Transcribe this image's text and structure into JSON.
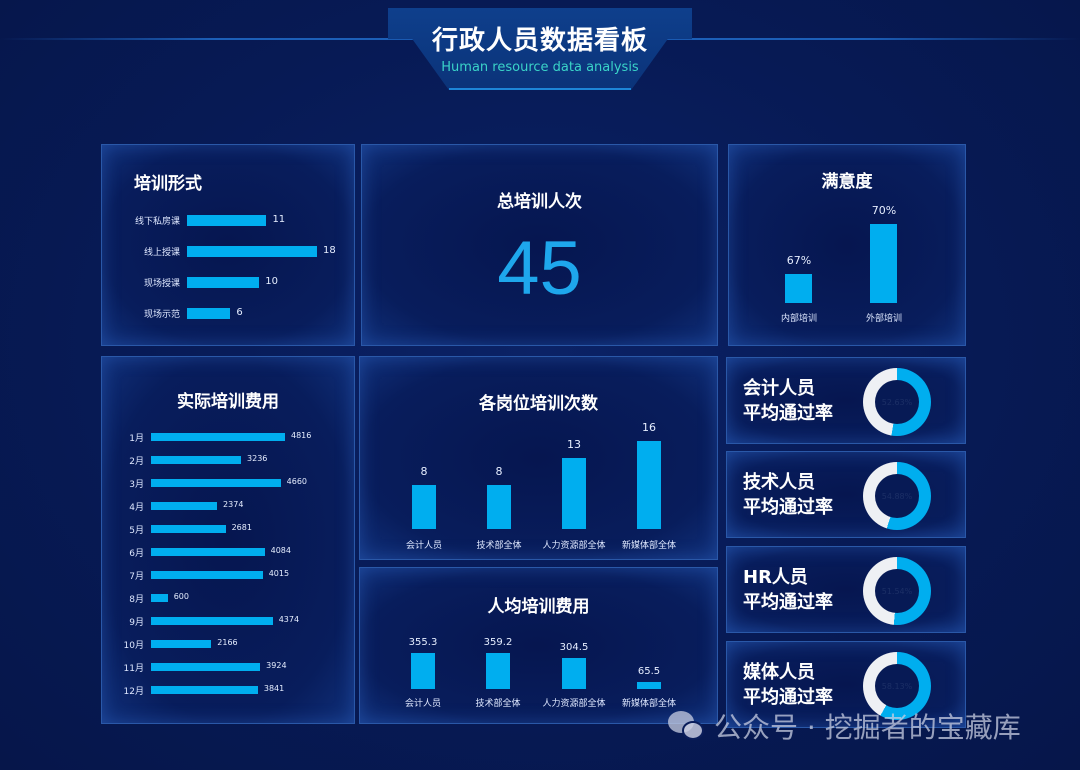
{
  "header": {
    "title": "行政人员数据看板",
    "subtitle": "Human resource data analysis"
  },
  "training_form": {
    "title": "培训形式",
    "items": [
      {
        "label": "线下私房课",
        "value": "11"
      },
      {
        "label": "线上授课",
        "value": "18"
      },
      {
        "label": "现场授课",
        "value": "10"
      },
      {
        "label": "现场示范",
        "value": "6"
      }
    ]
  },
  "total_training": {
    "title": "总培训人次",
    "value": "45"
  },
  "satisfaction": {
    "title": "满意度",
    "items": [
      {
        "label": "内部培训",
        "value": "67%"
      },
      {
        "label": "外部培训",
        "value": "70%"
      }
    ]
  },
  "actual_cost": {
    "title": "实际培训费用",
    "items": [
      {
        "label": "1月",
        "value": "4816"
      },
      {
        "label": "2月",
        "value": "3236"
      },
      {
        "label": "3月",
        "value": "4660"
      },
      {
        "label": "4月",
        "value": "2374"
      },
      {
        "label": "5月",
        "value": "2681"
      },
      {
        "label": "6月",
        "value": "4084"
      },
      {
        "label": "7月",
        "value": "4015"
      },
      {
        "label": "8月",
        "value": "600"
      },
      {
        "label": "9月",
        "value": "4374"
      },
      {
        "label": "10月",
        "value": "2166"
      },
      {
        "label": "11月",
        "value": "3924"
      },
      {
        "label": "12月",
        "value": "3841"
      }
    ]
  },
  "position_count": {
    "title": "各岗位培训次数",
    "items": [
      {
        "label": "会计人员",
        "value": "8"
      },
      {
        "label": "技术部全体",
        "value": "8"
      },
      {
        "label": "人力资源部全体",
        "value": "13"
      },
      {
        "label": "新媒体部全体",
        "value": "16"
      }
    ]
  },
  "per_capita_cost": {
    "title": "人均培训费用",
    "items": [
      {
        "label": "会计人员",
        "value": "355.3"
      },
      {
        "label": "技术部全体",
        "value": "359.2"
      },
      {
        "label": "人力资源部全体",
        "value": "304.5"
      },
      {
        "label": "新媒体部全体",
        "value": "65.5"
      }
    ]
  },
  "pass_rates": [
    {
      "line1": "会计人员",
      "line2": "平均通过率",
      "value": "52.63%",
      "pct": 52.63
    },
    {
      "line1": "技术人员",
      "line2": "平均通过率",
      "value": "54.88%",
      "pct": 54.88
    },
    {
      "line1": "HR人员",
      "line2": "平均通过率",
      "value": "51.54%",
      "pct": 51.54
    },
    {
      "line1": "媒体人员",
      "line2": "平均通过率",
      "value": "58.13%",
      "pct": 58.13
    }
  ],
  "watermark": "公众号 · 挖掘者的宝藏库",
  "colors": {
    "bar": "#00aeef",
    "background": "#071a55",
    "donut_rest": "#eef0f4",
    "subtitle": "#3ad3c8"
  },
  "chart_data": [
    {
      "type": "bar",
      "orientation": "horizontal",
      "title": "培训形式",
      "categories": [
        "线下私房课",
        "线上授课",
        "现场授课",
        "现场示范"
      ],
      "values": [
        11,
        18,
        10,
        6
      ]
    },
    {
      "type": "table",
      "title": "总培训人次",
      "values": [
        45
      ]
    },
    {
      "type": "bar",
      "title": "满意度",
      "categories": [
        "内部培训",
        "外部培训"
      ],
      "values": [
        67,
        70
      ],
      "unit": "%"
    },
    {
      "type": "bar",
      "orientation": "horizontal",
      "title": "实际培训费用",
      "categories": [
        "1月",
        "2月",
        "3月",
        "4月",
        "5月",
        "6月",
        "7月",
        "8月",
        "9月",
        "10月",
        "11月",
        "12月"
      ],
      "values": [
        4816,
        3236,
        4660,
        2374,
        2681,
        4084,
        4015,
        600,
        4374,
        2166,
        3924,
        3841
      ]
    },
    {
      "type": "bar",
      "title": "各岗位培训次数",
      "categories": [
        "会计人员",
        "技术部全体",
        "人力资源部全体",
        "新媒体部全体"
      ],
      "values": [
        8,
        8,
        13,
        16
      ]
    },
    {
      "type": "bar",
      "title": "人均培训费用",
      "categories": [
        "会计人员",
        "技术部全体",
        "人力资源部全体",
        "新媒体部全体"
      ],
      "values": [
        355.3,
        359.2,
        304.5,
        65.5
      ]
    },
    {
      "type": "pie",
      "title": "平均通过率",
      "categories": [
        "会计人员",
        "技术人员",
        "HR人员",
        "媒体人员"
      ],
      "values": [
        52.63,
        54.88,
        51.54,
        58.13
      ],
      "unit": "%",
      "style": "donut"
    }
  ]
}
